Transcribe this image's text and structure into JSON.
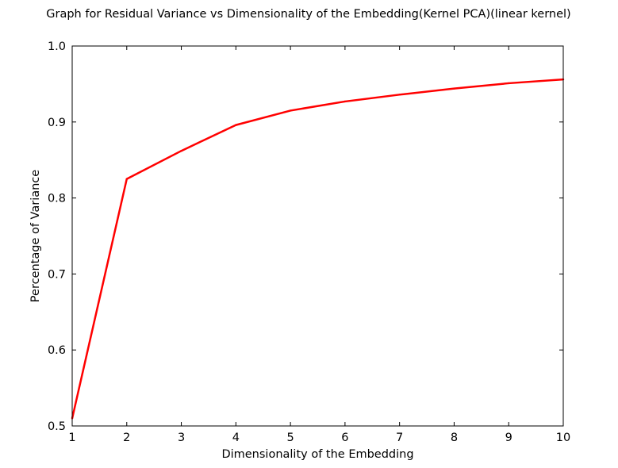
{
  "chart_data": {
    "type": "line",
    "title": "Graph for Residual Variance vs Dimensionality of the Embedding(Kernel PCA)(linear kernel)",
    "xlabel": "Dimensionality of the Embedding",
    "ylabel": "Percentage of Variance",
    "xlim": [
      1,
      10
    ],
    "ylim": [
      0.5,
      1.0
    ],
    "xticks": [
      "1",
      "2",
      "3",
      "4",
      "5",
      "6",
      "7",
      "8",
      "9",
      "10"
    ],
    "yticks": [
      "0.5",
      "0.6",
      "0.7",
      "0.8",
      "0.9",
      "1.0"
    ],
    "grid": false,
    "legend": "none",
    "series": [
      {
        "color": "#ff0000",
        "x": [
          1,
          2,
          3,
          4,
          5,
          6,
          7,
          8,
          9,
          10
        ],
        "y": [
          0.51,
          0.825,
          0.862,
          0.896,
          0.915,
          0.927,
          0.936,
          0.944,
          0.951,
          0.956
        ]
      }
    ]
  }
}
